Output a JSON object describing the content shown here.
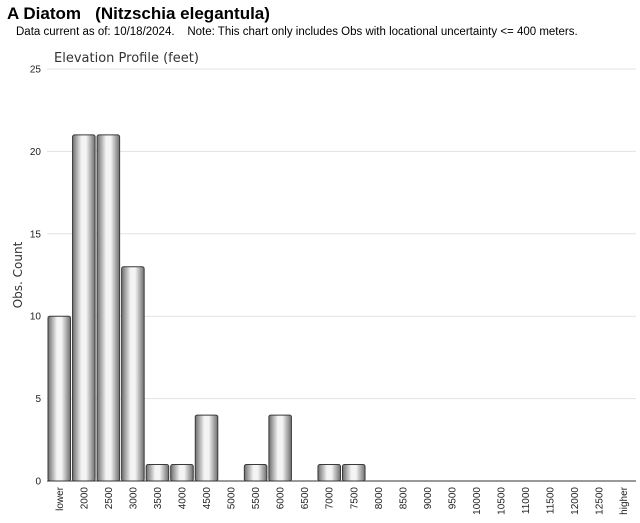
{
  "header": {
    "title": "A Diatom   (Nitzschia elegantula)",
    "subtitle": "Data current as of: 10/18/2024.    Note: This chart only includes Obs with locational uncertainty <= 400 meters."
  },
  "chart_data": {
    "type": "bar",
    "title": "Elevation Profile (feet)",
    "xlabel": "",
    "ylabel": "Obs. Count",
    "categories": [
      "lower",
      "2000",
      "2500",
      "3000",
      "3500",
      "4000",
      "4500",
      "5000",
      "5500",
      "6000",
      "6500",
      "7000",
      "7500",
      "8000",
      "8500",
      "9000",
      "9500",
      "10000",
      "10500",
      "11000",
      "11500",
      "12000",
      "12500",
      "higher"
    ],
    "values": [
      10,
      21,
      21,
      13,
      1,
      1,
      4,
      0,
      1,
      4,
      0,
      1,
      1,
      0,
      0,
      0,
      0,
      0,
      0,
      0,
      0,
      0,
      0,
      0
    ],
    "ylim": [
      0,
      25
    ],
    "yticks": [
      0,
      5,
      10,
      15,
      20,
      25
    ],
    "grid": true,
    "legend": "none",
    "colors": {
      "bar_dark": "#6e6e6e",
      "bar_light": "#f2f2f2",
      "bar_stroke": "#3a3a3a",
      "grid": "#e3e3e3",
      "axis": "#333333"
    }
  }
}
